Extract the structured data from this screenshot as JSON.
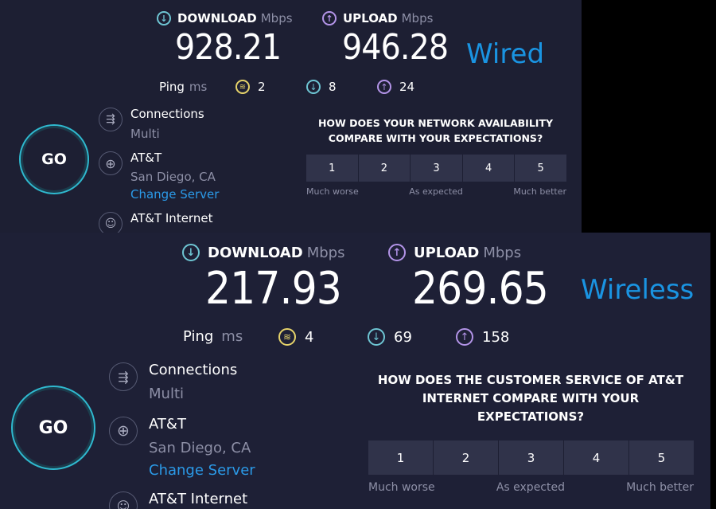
{
  "wired": {
    "tag": "Wired",
    "download": {
      "label": "DOWNLOAD",
      "unit": "Mbps",
      "value": "928.21"
    },
    "upload": {
      "label": "UPLOAD",
      "unit": "Mbps",
      "value": "946.28"
    },
    "ping": {
      "label": "Ping",
      "unit": "ms",
      "jitter": "2",
      "download": "8",
      "upload": "24"
    },
    "go_label": "GO",
    "connections": {
      "label": "Connections",
      "value": "Multi"
    },
    "server": {
      "provider": "AT&T",
      "location": "San Diego, CA",
      "change_link": "Change Server"
    },
    "isp": {
      "label": "AT&T Internet"
    },
    "survey": {
      "question": "HOW DOES YOUR NETWORK AVAILABILITY COMPARE WITH YOUR EXPECTATIONS?",
      "options": [
        "1",
        "2",
        "3",
        "4",
        "5"
      ],
      "scale": {
        "low": "Much worse",
        "mid": "As expected",
        "high": "Much better"
      }
    }
  },
  "wireless": {
    "tag": "Wireless",
    "download": {
      "label": "DOWNLOAD",
      "unit": "Mbps",
      "value": "217.93"
    },
    "upload": {
      "label": "UPLOAD",
      "unit": "Mbps",
      "value": "269.65"
    },
    "ping": {
      "label": "Ping",
      "unit": "ms",
      "jitter": "4",
      "download": "69",
      "upload": "158"
    },
    "go_label": "GO",
    "connections": {
      "label": "Connections",
      "value": "Multi"
    },
    "server": {
      "provider": "AT&T",
      "location": "San Diego, CA",
      "change_link": "Change Server"
    },
    "isp": {
      "label": "AT&T Internet"
    },
    "survey": {
      "question": "HOW DOES THE CUSTOMER SERVICE OF AT&T INTERNET COMPARE WITH YOUR EXPECTATIONS?",
      "options": [
        "1",
        "2",
        "3",
        "4",
        "5"
      ],
      "scale": {
        "low": "Much worse",
        "mid": "As expected",
        "high": "Much better"
      }
    }
  },
  "colors": {
    "accent": "#2fb9cf",
    "download": "#6ec5d3",
    "upload": "#b394e8",
    "jitter": "#e6d36a",
    "link": "#2b9ae8",
    "tag": "#1a94e2"
  }
}
